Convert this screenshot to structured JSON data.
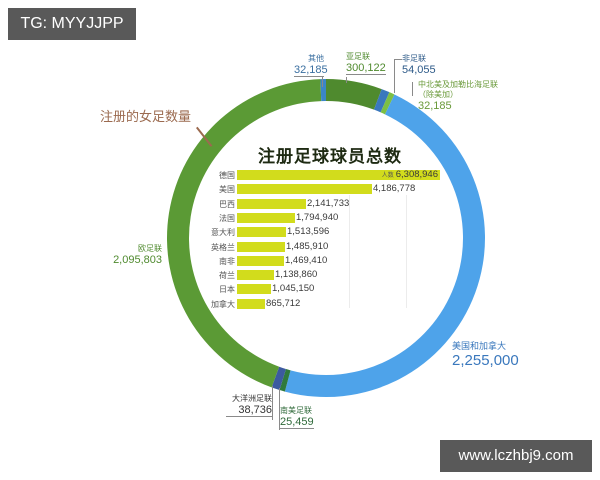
{
  "watermarks": {
    "top_left": "TG: MYYJJPP",
    "bottom_right": "www.lczhbj9.com"
  },
  "ring": {
    "title": "注册的女足数量",
    "segments": [
      {
        "name": "亚足联",
        "value": "300,122",
        "color": "#4f8a2e",
        "start": 0,
        "end": 20.5
      },
      {
        "name": "非足联",
        "value": "54,055",
        "color": "#3a78bd",
        "start": 20.5,
        "end": 23.5
      },
      {
        "name": "中北美及加勒比海足联（除美加）",
        "value": "32,185",
        "color": "#7cbf44",
        "start": 23.5,
        "end": 25.5
      },
      {
        "name": "美国和加拿大",
        "value": "2,255,000",
        "color": "#4ea3ea",
        "start": 25.5,
        "end": 195
      },
      {
        "name": "南美足联",
        "value": "25,459",
        "color": "#2f7a3d",
        "start": 195,
        "end": 197
      },
      {
        "name": "大洋洲足联",
        "value": "38,736",
        "color": "#3c5aa0",
        "start": 197,
        "end": 200
      },
      {
        "name": "欧足联",
        "value": "2,095,803",
        "color": "#5b9a35",
        "start": 200,
        "end": 358
      },
      {
        "name": "其他",
        "value": "32,185",
        "color": "#3b86c6",
        "start": 358,
        "end": 360
      }
    ]
  },
  "labels": {
    "other": {
      "name": "其他",
      "value": "32,185"
    },
    "afc": {
      "name": "亚足联",
      "value": "300,122"
    },
    "caf": {
      "name": "非足联",
      "value": "54,055"
    },
    "concacaf_line1": "中北美及加勒比海足联",
    "concacaf_line2": "（除美加）",
    "concacaf_value": "32,185",
    "usa_canada": {
      "name": "美国和加拿大",
      "value": "2,255,000"
    },
    "uefa": {
      "name": "欧足联",
      "value": "2,095,803"
    },
    "ofc": {
      "name": "大洋洲足联",
      "value": "38,736"
    },
    "conmebol": {
      "name": "南美足联",
      "value": "25,459"
    },
    "women_title": "注册的女足数量"
  },
  "bar_chart": {
    "title": "注册足球球员总数",
    "unit_label": "人数",
    "rows": [
      {
        "country": "德国",
        "value": 6308946,
        "display": "6,308,946"
      },
      {
        "country": "美国",
        "value": 4186778,
        "display": "4,186,778"
      },
      {
        "country": "巴西",
        "value": 2141733,
        "display": "2,141,733"
      },
      {
        "country": "法国",
        "value": 1794940,
        "display": "1,794,940"
      },
      {
        "country": "意大利",
        "value": 1513596,
        "display": "1,513,596"
      },
      {
        "country": "英格兰",
        "value": 1485910,
        "display": "1,485,910"
      },
      {
        "country": "南非",
        "value": 1469410,
        "display": "1,469,410"
      },
      {
        "country": "荷兰",
        "value": 1138860,
        "display": "1,138,860"
      },
      {
        "country": "日本",
        "value": 1045150,
        "display": "1,045,150"
      },
      {
        "country": "加拿大",
        "value": 865712,
        "display": "865,712"
      }
    ]
  },
  "colors": {
    "bar": "#d2dc1c",
    "women_title": "#9b6a4f",
    "uefa_text": "#4f8a2e",
    "usa_text": "#3a78bd"
  },
  "chart_data": [
    {
      "type": "pie",
      "title": "注册的女足数量",
      "categories": [
        "欧足联",
        "美国和加拿大",
        "亚足联",
        "非足联",
        "大洋洲足联",
        "其他",
        "中北美及加勒比海足联（除美加）",
        "南美足联"
      ],
      "values": [
        2095803,
        2255000,
        300122,
        54055,
        38736,
        32185,
        32185,
        25459
      ],
      "donut": true
    },
    {
      "type": "bar",
      "orientation": "horizontal",
      "title": "注册足球球员总数",
      "categories": [
        "德国",
        "美国",
        "巴西",
        "法国",
        "意大利",
        "英格兰",
        "南非",
        "荷兰",
        "日本",
        "加拿大"
      ],
      "values": [
        6308946,
        4186778,
        2141733,
        1794940,
        1513596,
        1485910,
        1469410,
        1138860,
        1045150,
        865712
      ],
      "xlabel": "人数",
      "ylabel": ""
    }
  ]
}
